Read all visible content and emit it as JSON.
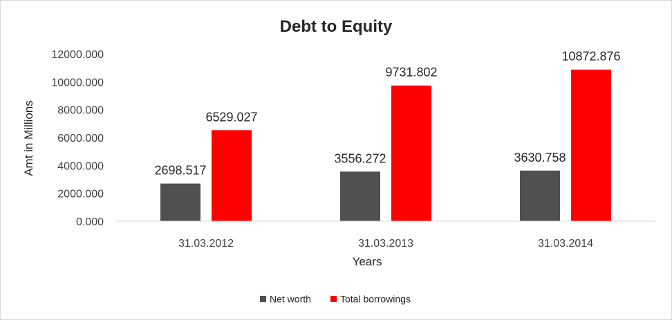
{
  "chart_data": {
    "type": "bar",
    "title": "Debt to Equity",
    "xlabel": "Years",
    "ylabel": "Amt in Millions",
    "categories": [
      "31.03.2012",
      "31.03.2013",
      "31.03.2014"
    ],
    "series": [
      {
        "name": "Net worth",
        "color": "#505050",
        "values": [
          2698.517,
          3556.272,
          3630.758
        ],
        "labels": [
          "2698.517",
          "3556.272",
          "3630.758"
        ]
      },
      {
        "name": "Total borrowings",
        "color": "#ff0000",
        "values": [
          6529.027,
          9731.802,
          10872.876
        ],
        "labels": [
          "6529.027",
          "9731.802",
          "10872.876"
        ]
      }
    ],
    "ylim": [
      0,
      12000
    ],
    "yticks": [
      0,
      2000,
      4000,
      6000,
      8000,
      10000,
      12000
    ],
    "ytick_labels": [
      "0.000",
      "2000.000",
      "4000.000",
      "6000.000",
      "8000.000",
      "10000.000",
      "12000.000"
    ],
    "grid": false,
    "legend_position": "bottom"
  }
}
